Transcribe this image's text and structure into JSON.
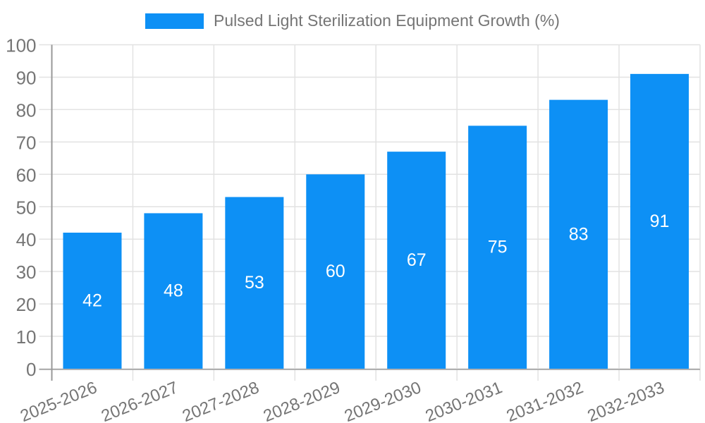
{
  "chart_data": {
    "type": "bar",
    "title": "Pulsed Light Sterilization Equipment Growth (%)",
    "categories": [
      "2025-2026",
      "2026-2027",
      "2027-2028",
      "2028-2029",
      "2029-2030",
      "2030-2031",
      "2031-2032",
      "2032-2033"
    ],
    "values": [
      42,
      48,
      53,
      60,
      67,
      75,
      83,
      91
    ],
    "series": [
      {
        "name": "Pulsed Light Sterilization Equipment Growth (%)",
        "values": [
          42,
          48,
          53,
          60,
          67,
          75,
          83,
          91
        ]
      }
    ],
    "xlabel": "",
    "ylabel": "",
    "ylim": [
      0,
      100
    ],
    "ytick_step": 10,
    "grid": true,
    "legend_position": "top",
    "value_labels_position": "inside-center",
    "x_label_rotation_deg": -22,
    "colors": {
      "bar": "#0d90f5",
      "bar_value_label": "#ffffff",
      "axis_text": "#757575",
      "grid_line": "#e2e2e2",
      "y_axis_line": "#999999",
      "x_axis_line": "#b0b0b0",
      "background": "#ffffff"
    }
  }
}
